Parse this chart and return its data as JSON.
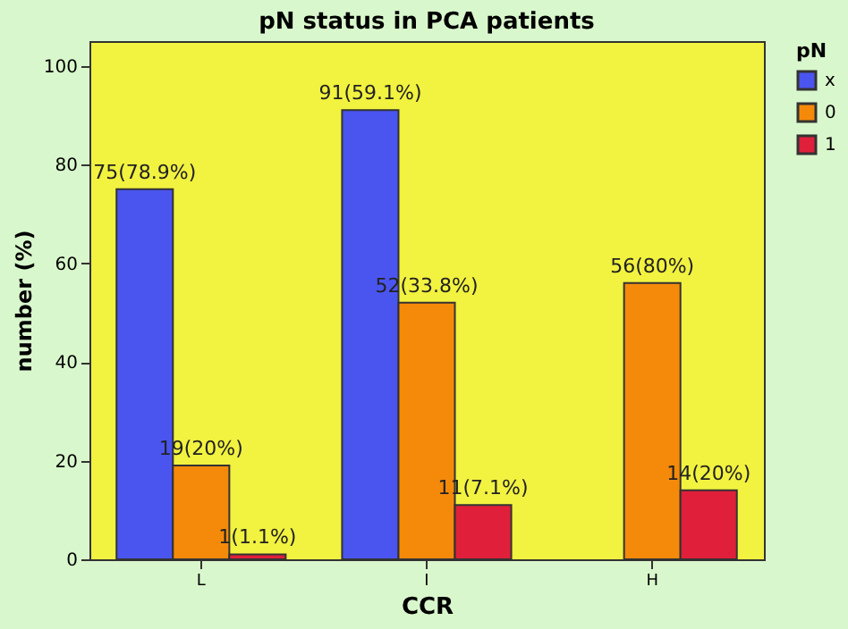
{
  "chart_data": {
    "type": "bar",
    "title": "pN status in PCA patients",
    "xlabel": "CCR",
    "ylabel": "number (%)",
    "legend_title": "pN",
    "categories": [
      "L",
      "I",
      "H"
    ],
    "series": [
      {
        "name": "x",
        "color": "#4a55f0",
        "values": [
          75,
          91,
          null
        ],
        "value_labels": [
          "75(78.9%)",
          "91(59.1%)",
          null
        ]
      },
      {
        "name": "0",
        "color": "#f58a0a",
        "values": [
          19,
          52,
          56
        ],
        "value_labels": [
          "19(20%)",
          "52(33.8%)",
          "56(80%)"
        ]
      },
      {
        "name": "1",
        "color": "#e0203a",
        "values": [
          1,
          11,
          14
        ],
        "value_labels": [
          "1(1.1%)",
          "11(7.1%)",
          "14(20%)"
        ]
      }
    ],
    "ylim": [
      0,
      105
    ],
    "yticks": [
      0,
      20,
      40,
      60,
      80,
      100
    ],
    "grid": false,
    "legend": "top right"
  }
}
